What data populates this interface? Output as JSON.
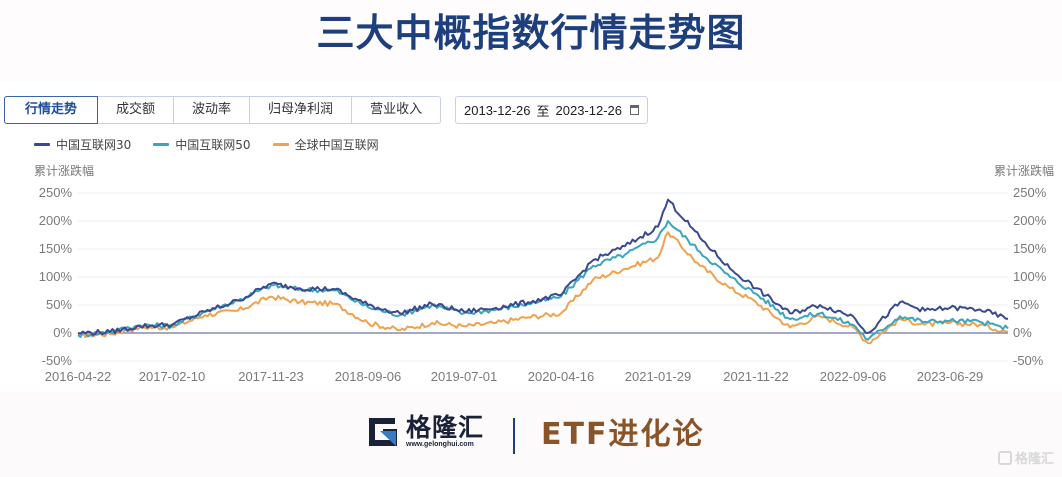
{
  "title": "三大中概指数行情走势图",
  "tabs": [
    {
      "label": "行情走势",
      "active": true
    },
    {
      "label": "成交额",
      "active": false
    },
    {
      "label": "波动率",
      "active": false
    },
    {
      "label": "归母净利润",
      "active": false
    },
    {
      "label": "营业收入",
      "active": false
    }
  ],
  "date_range": {
    "start": "2013-12-26",
    "separator": "至",
    "end": "2023-12-26",
    "icon": "calendar-icon"
  },
  "legend": [
    {
      "label": "中国互联网30",
      "color": "#3b4a8f"
    },
    {
      "label": "中国互联网50",
      "color": "#39a6bd"
    },
    {
      "label": "全球中国互联网",
      "color": "#f0a24e"
    }
  ],
  "axis": {
    "left_title": "累计涨跌幅",
    "right_title": "累计涨跌幅",
    "y_ticks": [
      "250%",
      "200%",
      "150%",
      "100%",
      "50%",
      "0%",
      "-50%"
    ],
    "x_ticks": [
      "2016-04-22",
      "2017-02-10",
      "2017-11-23",
      "2018-09-06",
      "2019-07-01",
      "2020-04-16",
      "2021-01-29",
      "2021-11-22",
      "2022-09-06",
      "2023-06-29"
    ]
  },
  "footer": {
    "logo_cn": "格隆汇",
    "logo_url": "www.gelonghui.com",
    "brand": "ETF进化论",
    "watermark": "格隆汇"
  },
  "chart_data": {
    "type": "line",
    "title": "三大中概指数行情走势图",
    "xlabel": "",
    "ylabel": "累计涨跌幅",
    "ylim": [
      -50,
      250
    ],
    "y_unit": "%",
    "grid": true,
    "legend_position": "top-left",
    "x": [
      "2016-04-22",
      "2016-07",
      "2016-10",
      "2017-02-10",
      "2017-05",
      "2017-08",
      "2017-11-23",
      "2018-03",
      "2018-06",
      "2018-09-06",
      "2018-12",
      "2019-03",
      "2019-07-01",
      "2019-10",
      "2020-01",
      "2020-04-16",
      "2020-07",
      "2020-10",
      "2021-01-29",
      "2021-02-17",
      "2021-05",
      "2021-08",
      "2021-11-22",
      "2022-03",
      "2022-06",
      "2022-09-06",
      "2022-10-31",
      "2023-01",
      "2023-03",
      "2023-06-29",
      "2023-09",
      "2023-12-26"
    ],
    "series": [
      {
        "name": "中国互联网30",
        "color": "#3b4a8f",
        "values": [
          0,
          2,
          12,
          15,
          38,
          58,
          88,
          80,
          78,
          50,
          35,
          52,
          38,
          45,
          55,
          68,
          130,
          155,
          190,
          238,
          170,
          115,
          80,
          35,
          50,
          30,
          0,
          55,
          40,
          45,
          42,
          25
        ]
      },
      {
        "name": "中国互联网50",
        "color": "#39a6bd",
        "values": [
          -4,
          2,
          14,
          13,
          38,
          58,
          85,
          78,
          76,
          46,
          32,
          50,
          35,
          42,
          52,
          65,
          120,
          140,
          170,
          200,
          145,
          100,
          70,
          25,
          35,
          15,
          -12,
          30,
          20,
          22,
          20,
          8
        ]
      },
      {
        "name": "全球中国互联网",
        "color": "#f0a24e",
        "values": [
          -4,
          -2,
          10,
          10,
          32,
          40,
          65,
          55,
          52,
          18,
          5,
          18,
          12,
          18,
          28,
          35,
          95,
          115,
          135,
          180,
          120,
          80,
          55,
          10,
          30,
          10,
          -18,
          25,
          15,
          18,
          15,
          2
        ]
      }
    ]
  }
}
